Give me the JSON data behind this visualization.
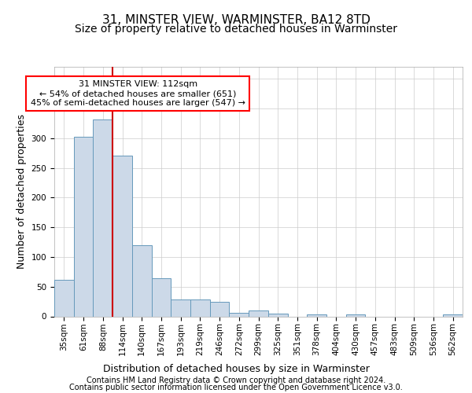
{
  "title1": "31, MINSTER VIEW, WARMINSTER, BA12 8TD",
  "title2": "Size of property relative to detached houses in Warminster",
  "xlabel": "Distribution of detached houses by size in Warminster",
  "ylabel": "Number of detached properties",
  "footer1": "Contains HM Land Registry data © Crown copyright and database right 2024.",
  "footer2": "Contains public sector information licensed under the Open Government Licence v3.0.",
  "ann_line1": "31 MINSTER VIEW: 112sqm",
  "ann_line2": "← 54% of detached houses are smaller (651)",
  "ann_line3": "45% of semi-detached houses are larger (547) →",
  "bin_labels": [
    "35sqm",
    "61sqm",
    "88sqm",
    "114sqm",
    "140sqm",
    "167sqm",
    "193sqm",
    "219sqm",
    "246sqm",
    "272sqm",
    "299sqm",
    "325sqm",
    "351sqm",
    "378sqm",
    "404sqm",
    "430sqm",
    "457sqm",
    "483sqm",
    "509sqm",
    "536sqm",
    "562sqm"
  ],
  "bar_values": [
    62,
    302,
    332,
    271,
    120,
    64,
    29,
    28,
    24,
    6,
    10,
    5,
    0,
    3,
    0,
    3,
    0,
    0,
    0,
    0,
    3
  ],
  "bar_color": "#ccd9e8",
  "bar_edge_color": "#6699bb",
  "vline_color": "#cc0000",
  "vline_x": 2.5,
  "ylim_max": 420,
  "yticks": [
    0,
    50,
    100,
    150,
    200,
    250,
    300,
    350,
    400
  ],
  "grid_color": "#cccccc",
  "title1_fontsize": 11,
  "title2_fontsize": 10,
  "ylabel_fontsize": 9,
  "xlabel_fontsize": 9,
  "tick_fontsize": 7.5,
  "ann_fontsize": 8,
  "footer_fontsize": 7
}
